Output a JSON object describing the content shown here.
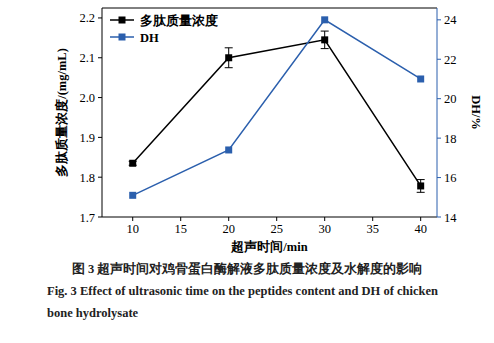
{
  "chart_data": {
    "type": "line",
    "title": "图 3 超声时间对鸡骨蛋白酶解液多肽质量浓度及水解度的影响",
    "subtitle": "Fig. 3 Effect of ultrasonic time on the peptides content and DH of chicken bone hydrolysate",
    "x_label": "超声时间/min",
    "y_label": "多肽质量浓度/(mg/mL)",
    "y2_label": "DH/%",
    "x": [
      10,
      20,
      30,
      40
    ],
    "xlim": [
      6.8,
      41.7
    ],
    "xticks": [
      10,
      15,
      20,
      25,
      30,
      35,
      40
    ],
    "ylim": [
      1.7,
      2.225
    ],
    "yticks": [
      1.7,
      1.8,
      1.9,
      {
        "value": 2,
        "label": "2.0"
      },
      2.1,
      2.2
    ],
    "y2lim": [
      14,
      24.6
    ],
    "y2ticks": [
      14,
      16,
      18,
      20,
      22,
      24
    ],
    "grid": false,
    "legend": "upper left",
    "series": [
      {
        "name": "多肽质量浓度",
        "color": "#000000",
        "marker": "square",
        "line_style": "solid",
        "values": [
          1.835,
          2.1,
          2.145,
          1.778
        ],
        "errors": [
          0.005,
          0.025,
          0.022,
          0.016
        ]
      },
      {
        "name": "DH",
        "color": "#2b5fad",
        "marker": "square",
        "line_style": "solid",
        "axis": "y2",
        "values": [
          15.1,
          17.4,
          24.0,
          21.0
        ]
      }
    ]
  }
}
